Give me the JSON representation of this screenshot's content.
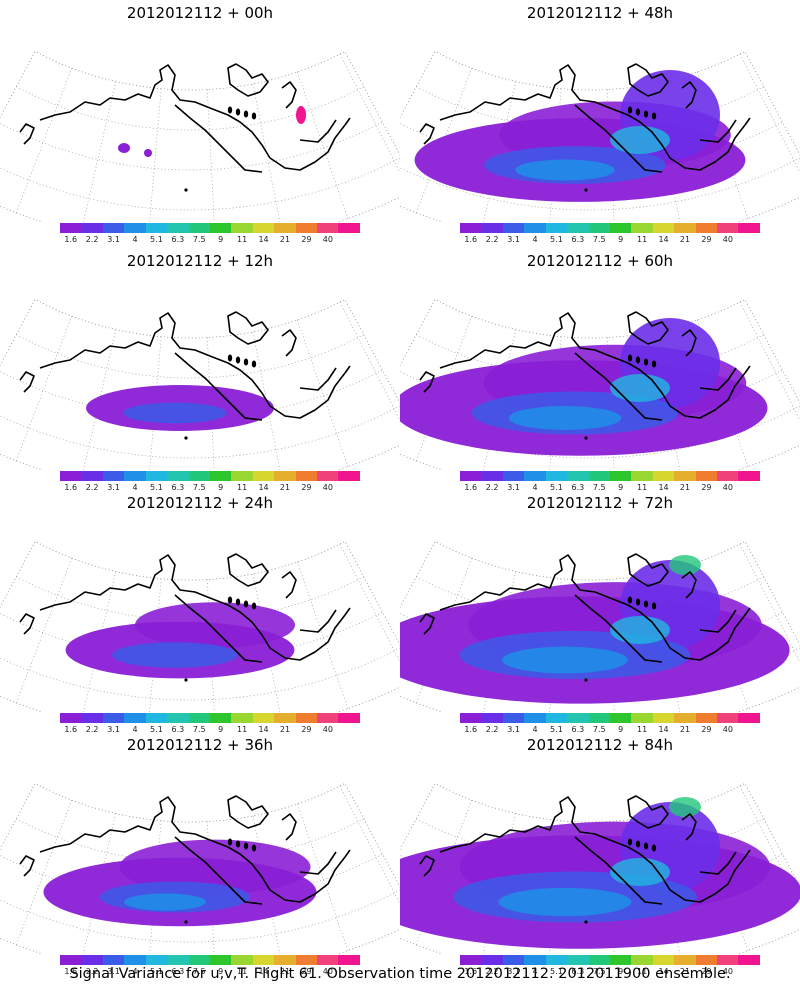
{
  "caption": "Signal Variance for u,v,T. Flight 61. Observation time 2012012112. 2012011900 ensemble.",
  "colorbar": {
    "labels": [
      "1.6",
      "2.2",
      "3.1",
      "4",
      "5.1",
      "6.3",
      "7.5",
      "9",
      "11",
      "14",
      "21",
      "29",
      "40"
    ],
    "colors": [
      "#8a1fd6",
      "#6a2ee8",
      "#3b5be8",
      "#1f8fe8",
      "#20b8e0",
      "#22c6b0",
      "#22c77a",
      "#2ec62e",
      "#9ad631",
      "#d6d62e",
      "#e6ae2e",
      "#ef7d2f",
      "#f0417a",
      "#f0148f"
    ]
  },
  "panels": [
    {
      "title": "2012012112 + 00h",
      "level": 0.0
    },
    {
      "title": "2012012112 + 48h",
      "level": 0.62
    },
    {
      "title": "2012012112 + 12h",
      "level": 0.2
    },
    {
      "title": "2012012112 + 60h",
      "level": 0.75
    },
    {
      "title": "2012012112 + 24h",
      "level": 0.32
    },
    {
      "title": "2012012112 + 72h",
      "level": 0.88
    },
    {
      "title": "2012012112 + 36h",
      "level": 0.45
    },
    {
      "title": "2012012112 + 84h",
      "level": 0.95
    }
  ]
}
